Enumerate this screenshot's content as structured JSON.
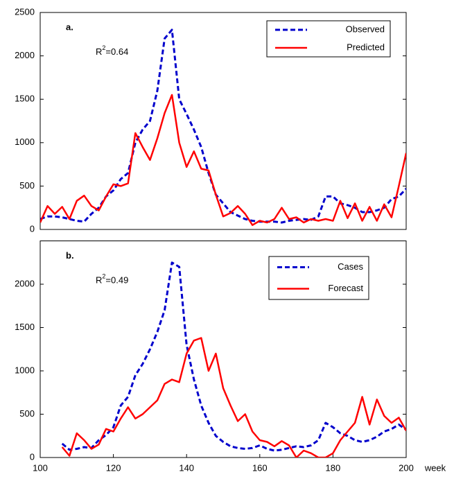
{
  "chart_data": [
    {
      "type": "line",
      "panel_label": "a.",
      "r2_symbol": "R",
      "r2_exponent": "2",
      "r2_value": "=0.64",
      "x": [
        100,
        102,
        104,
        106,
        108,
        110,
        112,
        114,
        116,
        118,
        120,
        122,
        124,
        126,
        128,
        130,
        132,
        134,
        136,
        138,
        140,
        142,
        144,
        146,
        148,
        150,
        152,
        154,
        156,
        158,
        160,
        162,
        164,
        166,
        168,
        170,
        172,
        174,
        176,
        178,
        180,
        182,
        184,
        186,
        188,
        190,
        192,
        194,
        196,
        198,
        200
      ],
      "xlim": [
        100,
        200
      ],
      "ylim": [
        0,
        2500
      ],
      "yticks": [
        0,
        500,
        1000,
        1500,
        2000,
        2500
      ],
      "series": [
        {
          "name": "Observed",
          "color": "#0000cc",
          "dashed": true,
          "values": [
            120,
            150,
            150,
            140,
            120,
            100,
            90,
            180,
            250,
            380,
            450,
            580,
            650,
            1000,
            1150,
            1250,
            1600,
            2200,
            2300,
            1500,
            1330,
            1150,
            950,
            650,
            400,
            300,
            200,
            160,
            120,
            100,
            90,
            90,
            90,
            80,
            100,
            110,
            120,
            110,
            150,
            380,
            380,
            300,
            280,
            250,
            200,
            200,
            220,
            250,
            350,
            380,
            470
          ]
        },
        {
          "name": "Predicted",
          "color": "#ff0000",
          "dashed": false,
          "values": [
            80,
            270,
            180,
            260,
            120,
            330,
            390,
            270,
            220,
            380,
            520,
            500,
            530,
            1110,
            950,
            800,
            1050,
            1340,
            1550,
            1000,
            720,
            900,
            700,
            680,
            400,
            150,
            190,
            270,
            180,
            50,
            100,
            80,
            120,
            250,
            120,
            140,
            80,
            120,
            100,
            120,
            100,
            330,
            130,
            300,
            100,
            260,
            100,
            290,
            140,
            500,
            880
          ]
        }
      ]
    },
    {
      "type": "line",
      "panel_label": "b.",
      "r2_symbol": "R",
      "r2_exponent": "2",
      "r2_value": "=0.49",
      "x_label": "week",
      "x": [
        106,
        108,
        110,
        112,
        114,
        116,
        118,
        120,
        122,
        124,
        126,
        128,
        130,
        132,
        134,
        136,
        138,
        140,
        142,
        144,
        146,
        148,
        150,
        152,
        154,
        156,
        158,
        160,
        162,
        164,
        166,
        168,
        170,
        172,
        174,
        176,
        178,
        180,
        182,
        184,
        186,
        188,
        190,
        192,
        194,
        196,
        198,
        200
      ],
      "xlim": [
        100,
        200
      ],
      "xticks": [
        100,
        120,
        140,
        160,
        180,
        200
      ],
      "ylim": [
        0,
        2500
      ],
      "yticks": [
        0,
        500,
        1000,
        1500,
        2000
      ],
      "series": [
        {
          "name": "Cases",
          "color": "#0000cc",
          "dashed": true,
          "values": [
            160,
            90,
            100,
            120,
            110,
            200,
            260,
            350,
            600,
            700,
            950,
            1080,
            1250,
            1450,
            1700,
            2250,
            2200,
            1300,
            900,
            600,
            400,
            250,
            180,
            130,
            110,
            100,
            110,
            140,
            100,
            80,
            90,
            110,
            130,
            120,
            140,
            200,
            400,
            350,
            280,
            250,
            200,
            180,
            200,
            240,
            300,
            330,
            380,
            320
          ]
        },
        {
          "name": "Forecast",
          "color": "#ff0000",
          "dashed": false,
          "values": [
            120,
            20,
            280,
            200,
            100,
            150,
            330,
            300,
            450,
            580,
            450,
            500,
            580,
            660,
            850,
            900,
            870,
            1200,
            1350,
            1380,
            1000,
            1200,
            800,
            600,
            420,
            500,
            300,
            200,
            180,
            130,
            190,
            140,
            0,
            80,
            50,
            0,
            0,
            50,
            200,
            300,
            400,
            700,
            380,
            670,
            480,
            400,
            460,
            310
          ]
        }
      ]
    }
  ]
}
